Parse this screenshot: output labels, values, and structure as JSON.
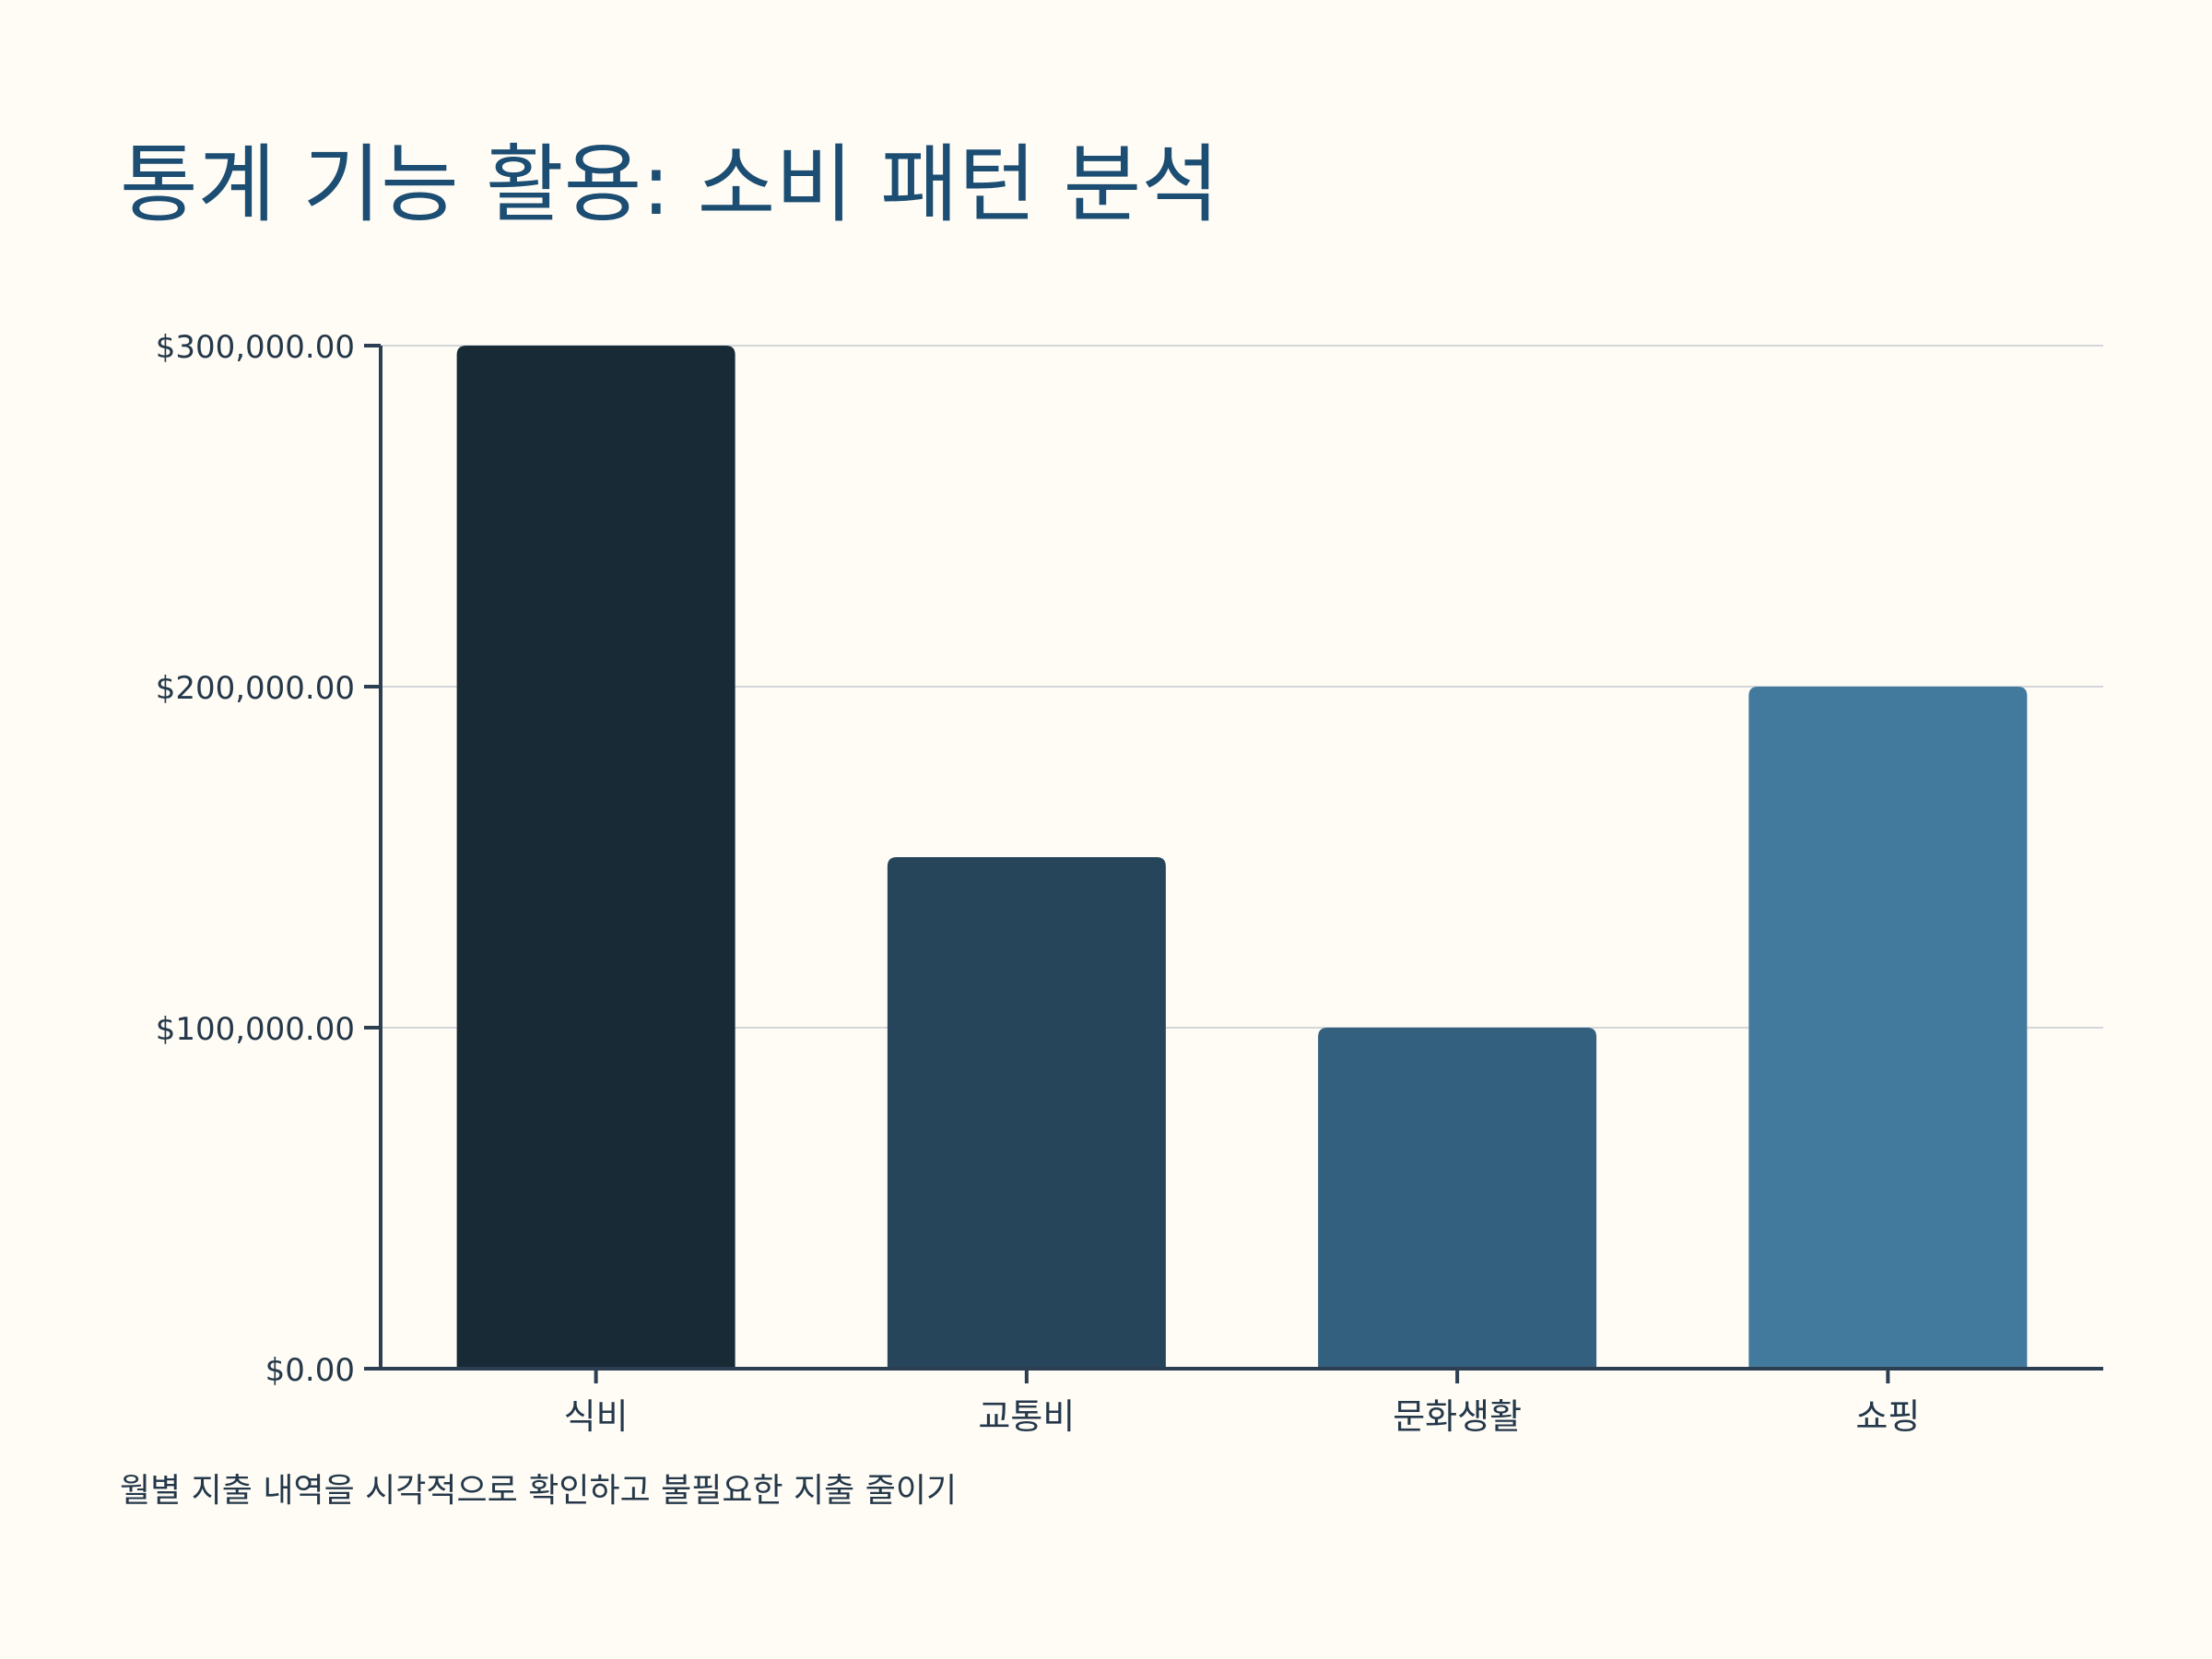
{
  "title": "통계 기능 활용: 소비 패턴 분석",
  "caption": "월별 지출 내역을 시각적으로 확인하고 불필요한 지출 줄이기",
  "chart_data": {
    "type": "bar",
    "title": "통계 기능 활용: 소비 패턴 분석",
    "xlabel": "",
    "ylabel": "",
    "categories": [
      "식비",
      "교통비",
      "문화생활",
      "쇼핑"
    ],
    "values": [
      300000,
      150000,
      100000,
      200000
    ],
    "ylim": [
      0,
      300000
    ],
    "yticks": [
      0,
      100000,
      200000,
      300000
    ],
    "ytick_labels": [
      "$0.00",
      "$100,000.00",
      "$200,000.00",
      "$300,000.00"
    ],
    "grid": true,
    "legend": "none",
    "bar_colors": [
      "#182a35",
      "#26455b",
      "#33607e",
      "#427a9e"
    ],
    "axis_color": "#2c3f52",
    "grid_color": "#d3d7da"
  }
}
